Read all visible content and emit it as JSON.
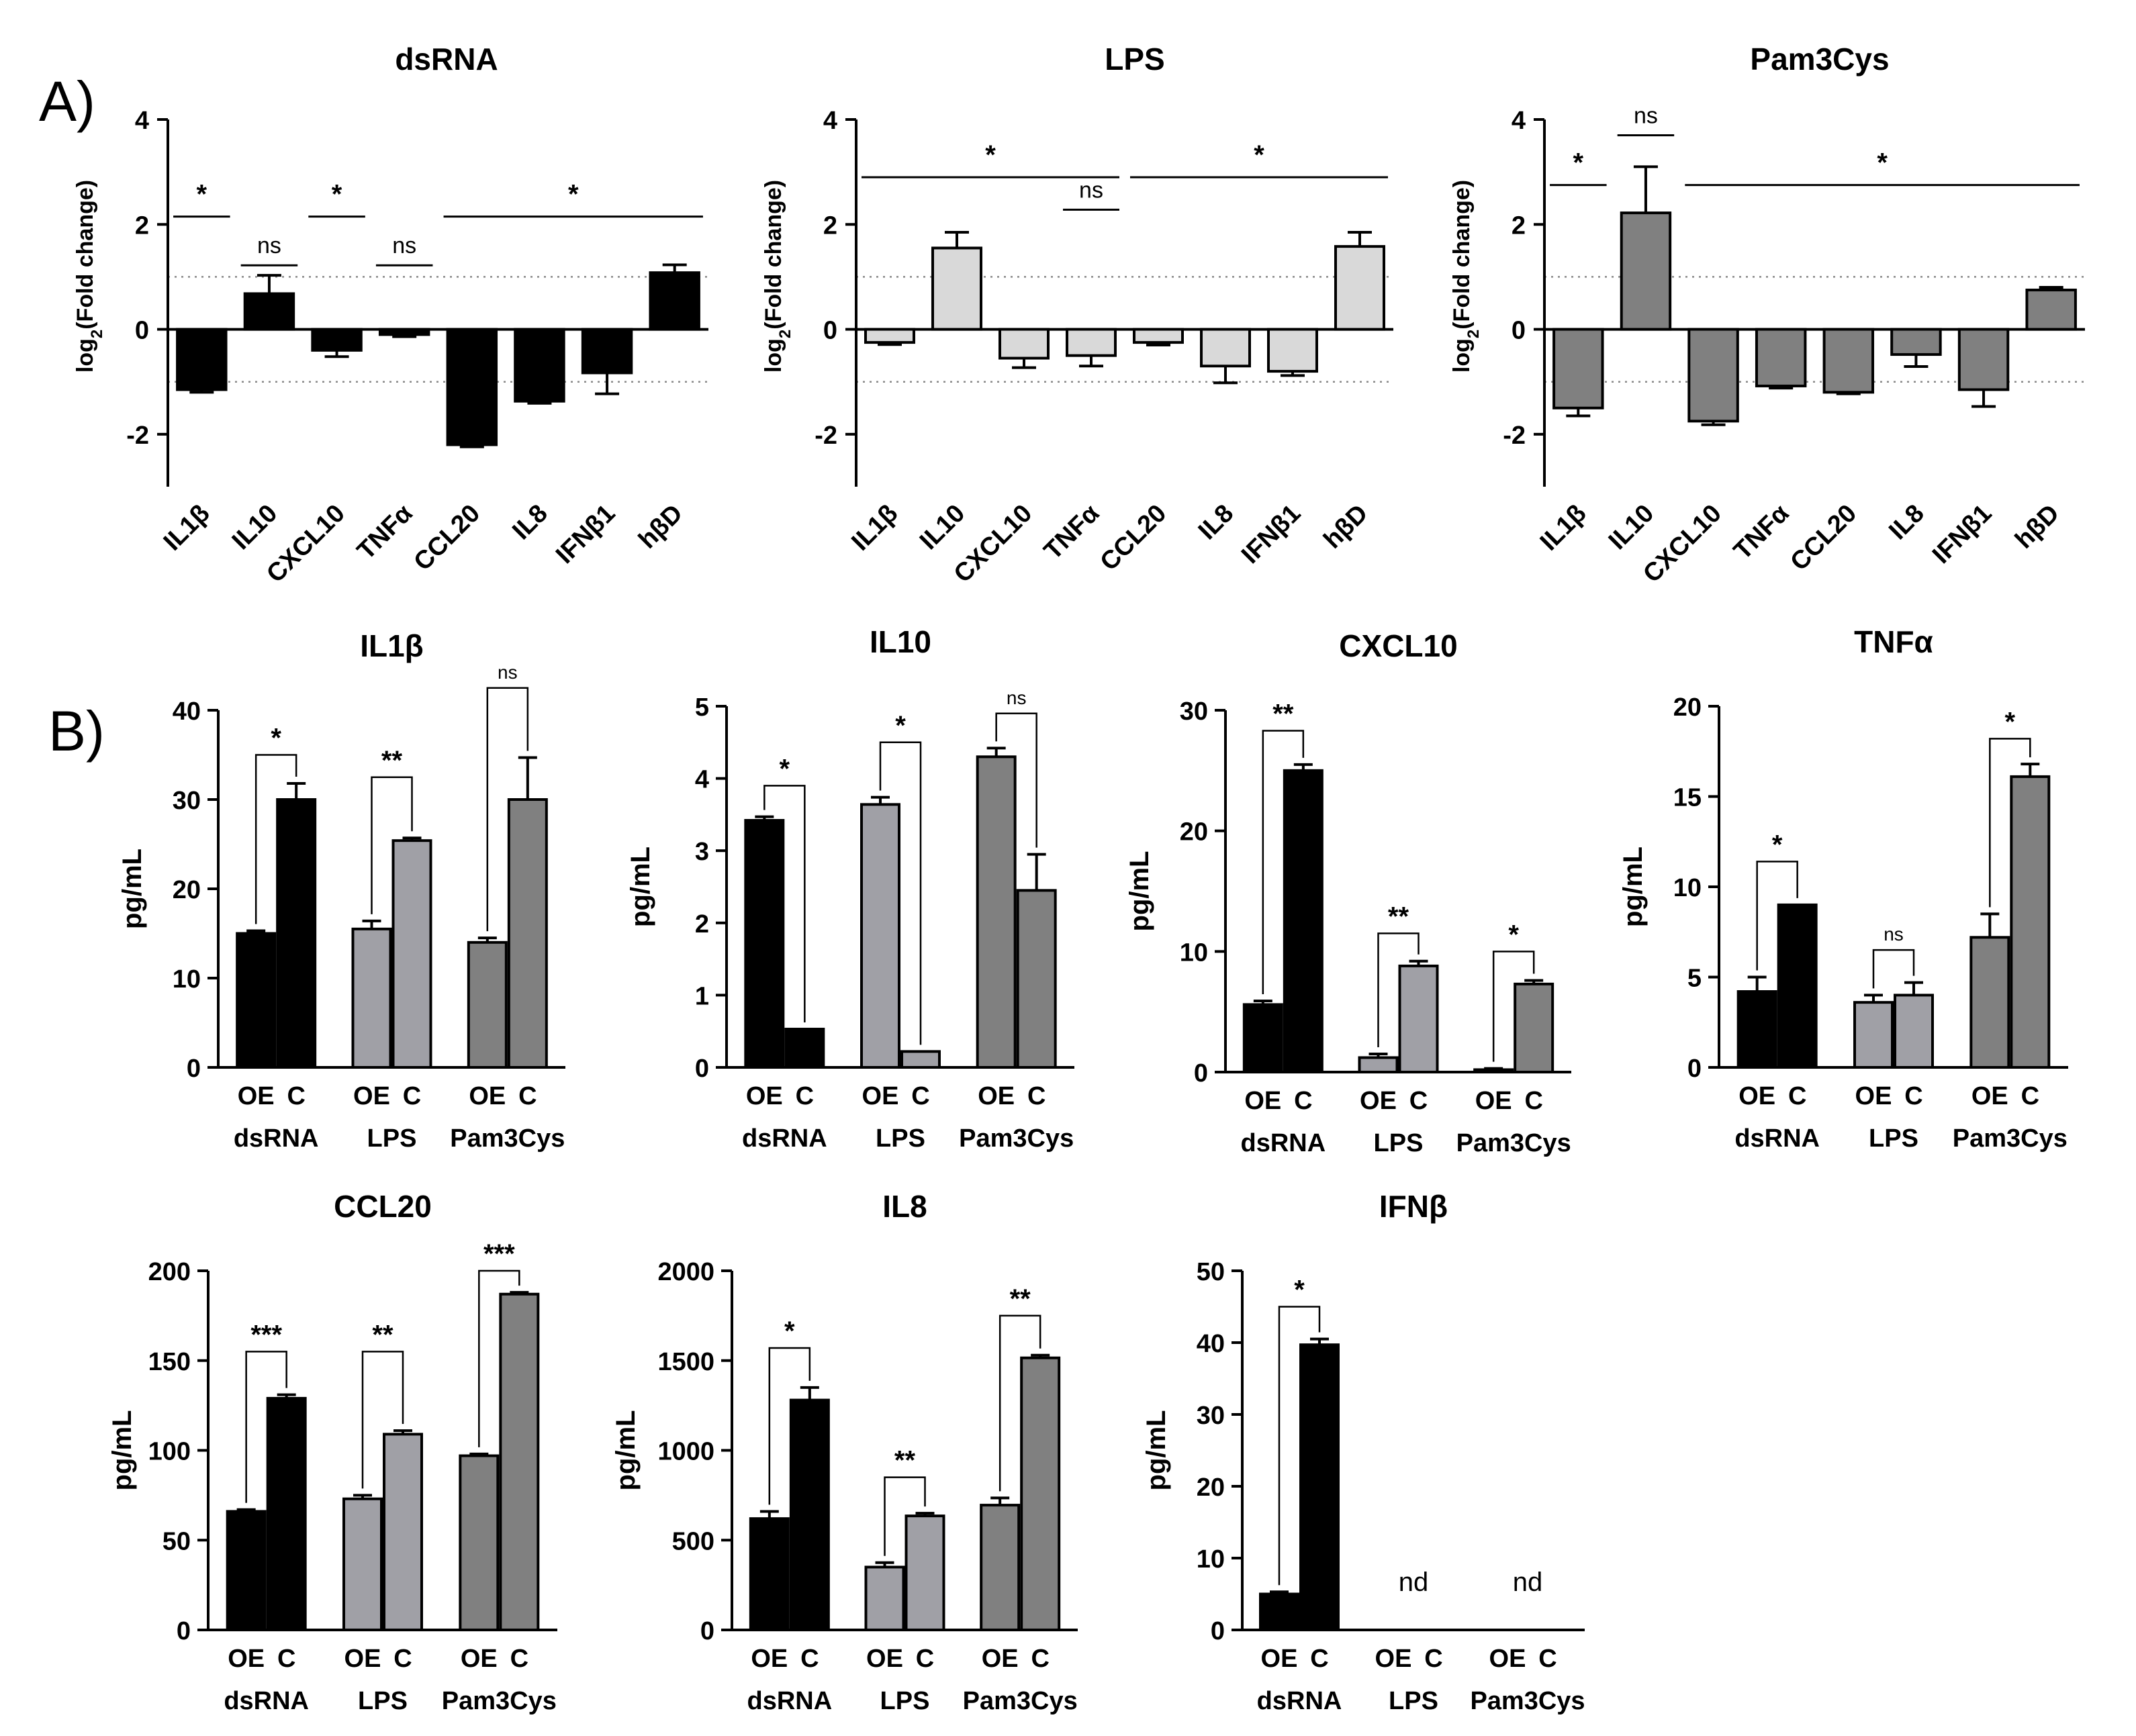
{
  "figure": {
    "panel_labels": [
      "A)",
      "B)"
    ],
    "colors": {
      "dsRNA": "#000000",
      "LPS": "#d9d9d9",
      "Pam3Cys": "#808080",
      "LPS_B": "#a0a0a6"
    }
  },
  "chart_data": [
    {
      "id": "A1",
      "type": "bar",
      "title": "dsRNA",
      "ylabel_main": "log",
      "ylabel_sub": "2",
      "ylabel_rest": "(Fold change)",
      "ylim": [
        -3,
        4
      ],
      "yticks": [
        -2,
        0,
        2,
        4
      ],
      "ref_lines": [
        1,
        -1
      ],
      "categories": [
        "IL1β",
        "IL10",
        "CXCL10",
        "TNFα",
        "CCL20",
        "IL8",
        "IFNβ1",
        "hβD"
      ],
      "values": [
        -1.15,
        0.68,
        -0.4,
        -0.1,
        -2.2,
        -1.37,
        -0.83,
        1.08
      ],
      "errors": [
        0.05,
        0.35,
        0.12,
        0.04,
        0.04,
        0.04,
        0.4,
        0.15
      ],
      "color": "#000000",
      "sig": [
        {
          "from": 0,
          "to": 0,
          "y": 2.15,
          "label": "*"
        },
        {
          "from": 1,
          "to": 1,
          "y": 1.22,
          "label": "ns"
        },
        {
          "from": 2,
          "to": 2,
          "y": 2.15,
          "label": "*"
        },
        {
          "from": 3,
          "to": 3,
          "y": 1.22,
          "label": "ns"
        },
        {
          "from": 4,
          "to": 7,
          "y": 2.15,
          "label": "*"
        }
      ]
    },
    {
      "id": "A2",
      "type": "bar",
      "title": "LPS",
      "ylabel_main": "log",
      "ylabel_sub": "2",
      "ylabel_rest": "(Fold change)",
      "ylim": [
        -3,
        4
      ],
      "yticks": [
        -2,
        0,
        2,
        4
      ],
      "ref_lines": [
        1,
        -1
      ],
      "categories": [
        "IL1β",
        "IL10",
        "CXCL10",
        "TNFα",
        "CCL20",
        "IL8",
        "IFNβ1",
        "hβD"
      ],
      "values": [
        -0.25,
        1.55,
        -0.55,
        -0.5,
        -0.25,
        -0.7,
        -0.8,
        1.58
      ],
      "errors": [
        0.04,
        0.3,
        0.18,
        0.2,
        0.05,
        0.32,
        0.08,
        0.27
      ],
      "color": "#d9d9d9",
      "sig": [
        {
          "from": 0,
          "to": 3,
          "y": 2.9,
          "label": "*"
        },
        {
          "from": 3,
          "to": 3,
          "y": 2.28,
          "label": "ns"
        },
        {
          "from": 4,
          "to": 7,
          "y": 2.9,
          "label": "*"
        }
      ]
    },
    {
      "id": "A3",
      "type": "bar",
      "title": "Pam3Cys",
      "ylabel_main": "log",
      "ylabel_sub": "2",
      "ylabel_rest": "(Fold change)",
      "ylim": [
        -3,
        4
      ],
      "yticks": [
        -2,
        0,
        2,
        4
      ],
      "ref_lines": [
        1,
        -1
      ],
      "categories": [
        "IL1β",
        "IL10",
        "CXCL10",
        "TNFα",
        "CCL20",
        "IL8",
        "IFNβ1",
        "hβD"
      ],
      "values": [
        -1.5,
        2.22,
        -1.75,
        -1.08,
        -1.2,
        -0.48,
        -1.15,
        0.75
      ],
      "errors": [
        0.15,
        0.88,
        0.07,
        0.04,
        0.03,
        0.23,
        0.32,
        0.05
      ],
      "color": "#808080",
      "sig": [
        {
          "from": 0,
          "to": 0,
          "y": 2.75,
          "label": "*"
        },
        {
          "from": 1,
          "to": 1,
          "y": 3.7,
          "label": "ns"
        },
        {
          "from": 2,
          "to": 7,
          "y": 2.75,
          "label": "*"
        }
      ]
    },
    {
      "id": "B1",
      "type": "bar",
      "title": "IL1β",
      "ylabel": "pg/mL",
      "ylim": [
        0,
        40
      ],
      "yticks": [
        0,
        10,
        20,
        30,
        40
      ],
      "groups": [
        "dsRNA",
        "LPS",
        "Pam3Cys"
      ],
      "bars": [
        "OE",
        "C"
      ],
      "values": [
        [
          15,
          30
        ],
        [
          15.5,
          25.4
        ],
        [
          14,
          30
        ]
      ],
      "errors": [
        [
          0.3,
          1.8
        ],
        [
          0.9,
          0.3
        ],
        [
          0.5,
          4.7
        ]
      ],
      "sig": [
        {
          "y": 35,
          "label": "*"
        },
        {
          "y": 32.5,
          "label": "**"
        },
        {
          "y": 42.5,
          "label": "ns"
        }
      ],
      "nd": []
    },
    {
      "id": "B2",
      "type": "bar",
      "title": "IL10",
      "ylabel": "pg/mL",
      "ylim": [
        0,
        5
      ],
      "yticks": [
        0,
        1,
        2,
        3,
        4,
        5
      ],
      "groups": [
        "dsRNA",
        "LPS",
        "Pam3Cys"
      ],
      "bars": [
        "OE",
        "C"
      ],
      "values": [
        [
          3.42,
          0.53
        ],
        [
          3.64,
          0.22
        ],
        [
          4.3,
          2.45
        ]
      ],
      "errors": [
        [
          0.05,
          0
        ],
        [
          0.1,
          0
        ],
        [
          0.12,
          0.5
        ]
      ],
      "sig": [
        {
          "y": 3.9,
          "label": "*"
        },
        {
          "y": 4.5,
          "label": "*"
        },
        {
          "y": 4.9,
          "label": "ns"
        }
      ],
      "nd": []
    },
    {
      "id": "B3",
      "type": "bar",
      "title": "CXCL10",
      "ylabel": "pg/mL",
      "ylim": [
        0,
        30
      ],
      "yticks": [
        0,
        10,
        20,
        30
      ],
      "groups": [
        "dsRNA",
        "LPS",
        "Pam3Cys"
      ],
      "bars": [
        "OE",
        "C"
      ],
      "values": [
        [
          5.6,
          25
        ],
        [
          1.2,
          8.8
        ],
        [
          0.2,
          7.3
        ]
      ],
      "errors": [
        [
          0.3,
          0.5
        ],
        [
          0.3,
          0.4
        ],
        [
          0.1,
          0.3
        ]
      ],
      "sig": [
        {
          "y": 28.3,
          "label": "**"
        },
        {
          "y": 11.5,
          "label": "**"
        },
        {
          "y": 10,
          "label": "*"
        }
      ],
      "nd": []
    },
    {
      "id": "B4",
      "type": "bar",
      "title": "TNFα",
      "ylabel": "pg/mL",
      "ylim": [
        0,
        20
      ],
      "yticks": [
        0,
        5,
        10,
        15,
        20
      ],
      "groups": [
        "dsRNA",
        "LPS",
        "Pam3Cys"
      ],
      "bars": [
        "OE",
        "C"
      ],
      "values": [
        [
          4.2,
          9
        ],
        [
          3.6,
          4
        ],
        [
          7.2,
          16.1
        ]
      ],
      "errors": [
        [
          0.8,
          0
        ],
        [
          0.4,
          0.7
        ],
        [
          1.3,
          0.7
        ]
      ],
      "sig": [
        {
          "y": 11.4,
          "label": "*"
        },
        {
          "y": 6.5,
          "label": "ns"
        },
        {
          "y": 18.2,
          "label": "*"
        }
      ],
      "nd": []
    },
    {
      "id": "B5",
      "type": "bar",
      "title": "CCL20",
      "ylabel": "pg/mL",
      "ylim": [
        0,
        200
      ],
      "yticks": [
        0,
        50,
        100,
        150,
        200
      ],
      "groups": [
        "dsRNA",
        "LPS",
        "Pam3Cys"
      ],
      "bars": [
        "OE",
        "C"
      ],
      "values": [
        [
          66,
          129
        ],
        [
          73,
          109
        ],
        [
          97,
          187
        ]
      ],
      "errors": [
        [
          1,
          2
        ],
        [
          2,
          2
        ],
        [
          1,
          1
        ]
      ],
      "sig": [
        {
          "y": 155,
          "label": "***"
        },
        {
          "y": 155,
          "label": "**"
        },
        {
          "y": 200,
          "label": "***"
        }
      ],
      "nd": []
    },
    {
      "id": "B6",
      "type": "bar",
      "title": "IL8",
      "ylabel": "pg/mL",
      "ylim": [
        0,
        2000
      ],
      "yticks": [
        0,
        500,
        1000,
        1500,
        2000
      ],
      "groups": [
        "dsRNA",
        "LPS",
        "Pam3Cys"
      ],
      "bars": [
        "OE",
        "C"
      ],
      "values": [
        [
          620,
          1280
        ],
        [
          350,
          635
        ],
        [
          695,
          1515
        ]
      ],
      "errors": [
        [
          40,
          70
        ],
        [
          25,
          15
        ],
        [
          40,
          15
        ]
      ],
      "sig": [
        {
          "y": 1570,
          "label": "*"
        },
        {
          "y": 850,
          "label": "**"
        },
        {
          "y": 1750,
          "label": "**"
        }
      ],
      "nd": []
    },
    {
      "id": "B7",
      "type": "bar",
      "title": "IFNβ",
      "ylabel": "pg/mL",
      "ylim": [
        0,
        50
      ],
      "yticks": [
        0,
        10,
        20,
        30,
        40,
        50
      ],
      "groups": [
        "dsRNA",
        "LPS",
        "Pam3Cys"
      ],
      "bars": [
        "OE",
        "C"
      ],
      "values": [
        [
          5,
          39.7
        ],
        [
          null,
          null
        ],
        [
          null,
          null
        ]
      ],
      "errors": [
        [
          0.3,
          0.8
        ],
        [
          0,
          0
        ],
        [
          0,
          0
        ]
      ],
      "sig": [
        {
          "y": 45,
          "label": "*"
        },
        null,
        null
      ],
      "nd": [
        "",
        "nd",
        "nd"
      ]
    }
  ]
}
